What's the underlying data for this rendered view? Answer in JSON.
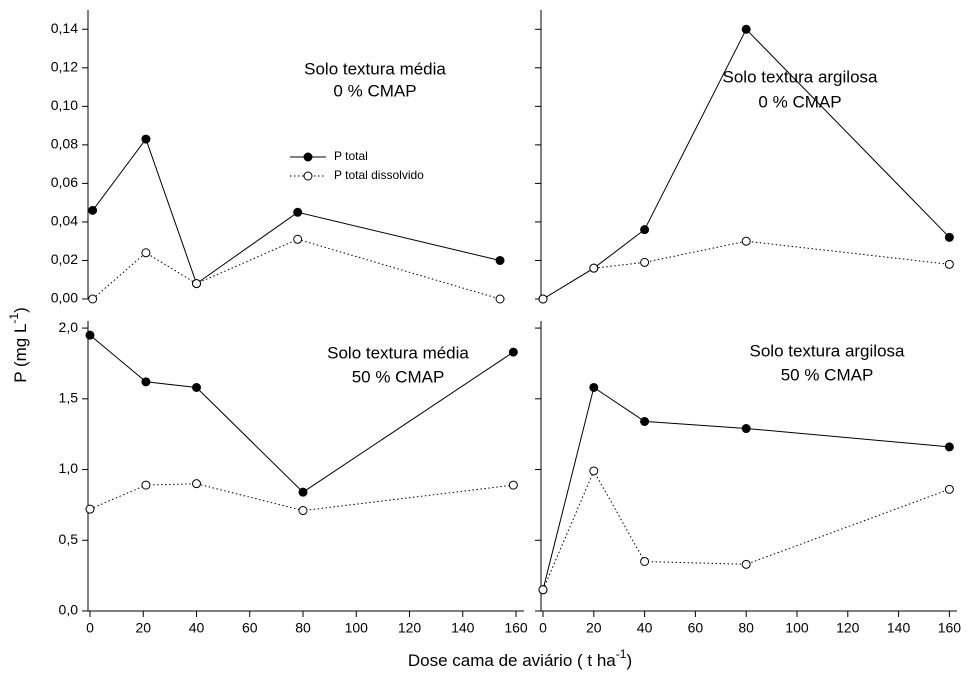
{
  "chart_data": [
    {
      "type": "line",
      "title_lines": [
        "Solo textura média",
        "0 % CMAP"
      ],
      "x": [
        1,
        21,
        40,
        78,
        154
      ],
      "xlim": [
        0,
        163
      ],
      "ylim": [
        0,
        0.15
      ],
      "yticks": [
        {
          "value": 0,
          "label": "0,00"
        },
        {
          "value": 0.02,
          "label": "0,02"
        },
        {
          "value": 0.04,
          "label": "0,04"
        },
        {
          "value": 0.06,
          "label": "0,06"
        },
        {
          "value": 0.08,
          "label": "0,08"
        },
        {
          "value": 0.1,
          "label": "0,10"
        },
        {
          "value": 0.12,
          "label": "0,12"
        },
        {
          "value": 0.14,
          "label": "0,14"
        }
      ],
      "legend": "center",
      "series": [
        {
          "name": "P total",
          "color": "#000000",
          "marker": "filled",
          "linestyle": "solid",
          "values": [
            0.046,
            0.083,
            0.008,
            0.045,
            0.02
          ]
        },
        {
          "name": "P total dissolvido",
          "color": "#000000",
          "marker": "open",
          "linestyle": "dotted",
          "values": [
            0,
            0.024,
            0.008,
            0.031,
            0
          ]
        }
      ]
    },
    {
      "type": "line",
      "title_lines": [
        "Solo textura argilosa",
        "0 % CMAP"
      ],
      "x": [
        0,
        20,
        40,
        80,
        160
      ],
      "xlim": [
        0,
        163
      ],
      "ylim": [
        0,
        0.15
      ],
      "yticks": [
        0,
        0.02,
        0.04,
        0.06,
        0.08,
        0.1,
        0.12,
        0.14
      ],
      "tick_labels": false,
      "series": [
        {
          "color": "#000000",
          "marker": "filled",
          "linestyle": "solid",
          "values": [
            0,
            0.016,
            0.036,
            0.14,
            0.032
          ]
        },
        {
          "color": "#000000",
          "marker": "open",
          "linestyle": "dotted",
          "values": [
            0,
            0.016,
            0.019,
            0.03,
            0.018
          ]
        }
      ]
    },
    {
      "type": "line",
      "title_lines": [
        "Solo textura média",
        "50 % CMAP"
      ],
      "x": [
        0,
        21,
        40,
        80,
        159
      ],
      "xlim": [
        0,
        163
      ],
      "xticks": [
        0,
        20,
        40,
        60,
        80,
        100,
        120,
        140,
        160
      ],
      "ylim": [
        0,
        2.05
      ],
      "yticks": [
        {
          "value": 0,
          "label": "0,0"
        },
        {
          "value": 0.5,
          "label": "0,5"
        },
        {
          "value": 1,
          "label": "1,0"
        },
        {
          "value": 1.5,
          "label": "1,5"
        },
        {
          "value": 2,
          "label": "2,0"
        }
      ],
      "series": [
        {
          "color": "#000000",
          "marker": "filled",
          "linestyle": "solid",
          "values": [
            1.95,
            1.62,
            1.58,
            0.84,
            1.83
          ]
        },
        {
          "color": "#000000",
          "marker": "open",
          "linestyle": "dotted",
          "values": [
            0.72,
            0.89,
            0.9,
            0.71,
            0.89
          ]
        }
      ]
    },
    {
      "type": "line",
      "title_lines": [
        "Solo textura argilosa",
        "50 % CMAP"
      ],
      "x": [
        0,
        20,
        40,
        80,
        160
      ],
      "xlim": [
        0,
        163
      ],
      "xticks": [
        0,
        20,
        40,
        60,
        80,
        100,
        120,
        140,
        160
      ],
      "ylim": [
        0,
        2.05
      ],
      "yticks": [
        0,
        0.5,
        1,
        1.5,
        2
      ],
      "tick_labels": false,
      "series": [
        {
          "color": "#000000",
          "marker": "filled",
          "linestyle": "solid",
          "values": [
            0.15,
            1.58,
            1.34,
            1.29,
            1.16
          ]
        },
        {
          "color": "#000000",
          "marker": "open",
          "linestyle": "dotted",
          "values": [
            0.15,
            0.99,
            0.35,
            0.33,
            0.86
          ]
        }
      ]
    }
  ],
  "axis_labels": {
    "y": "P (mg L",
    "y_sup": "-1",
    "y_end": ")",
    "x": "Dose cama de aviário ( t ha",
    "x_sup": "-1",
    "x_end": ")"
  }
}
